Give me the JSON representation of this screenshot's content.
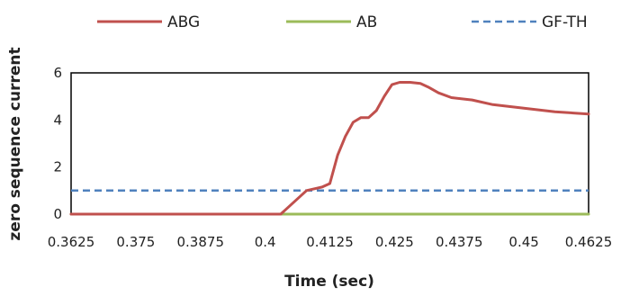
{
  "chart_data": {
    "type": "line",
    "title": "",
    "xlabel": "Time (sec)",
    "ylabel": "zero sequence current",
    "xlim": [
      0.3625,
      0.4625
    ],
    "ylim": [
      0,
      6
    ],
    "x_ticks": [
      "0.3625",
      "0.375",
      "0.3875",
      "0.4",
      "0.4125",
      "0.425",
      "0.4375",
      "0.45",
      "0.4625"
    ],
    "y_ticks": [
      "0",
      "2",
      "4",
      "6"
    ],
    "grid": false,
    "legend_position": "top",
    "series": [
      {
        "name": "ABG",
        "color": "#c0504d",
        "dash": "solid",
        "x": [
          0.3625,
          0.403,
          0.404,
          0.406,
          0.408,
          0.41,
          0.411,
          0.4125,
          0.414,
          0.4155,
          0.417,
          0.4185,
          0.42,
          0.4215,
          0.423,
          0.4245,
          0.426,
          0.428,
          0.43,
          0.4315,
          0.4335,
          0.436,
          0.44,
          0.444,
          0.45,
          0.456,
          0.4625
        ],
        "y": [
          0,
          0,
          0.2,
          0.6,
          1.0,
          1.1,
          1.15,
          1.3,
          2.5,
          3.3,
          3.9,
          4.1,
          4.1,
          4.4,
          5.0,
          5.5,
          5.6,
          5.6,
          5.55,
          5.4,
          5.15,
          4.95,
          4.85,
          4.65,
          4.5,
          4.35,
          4.25
        ]
      },
      {
        "name": "AB",
        "color": "#9bbb59",
        "dash": "solid",
        "x": [
          0.3625,
          0.4625
        ],
        "y": [
          0,
          0
        ]
      },
      {
        "name": "GF-TH",
        "color": "#4f81bd",
        "dash": "dashed",
        "x": [
          0.3625,
          0.4625
        ],
        "y": [
          1.0,
          1.0
        ]
      }
    ]
  }
}
